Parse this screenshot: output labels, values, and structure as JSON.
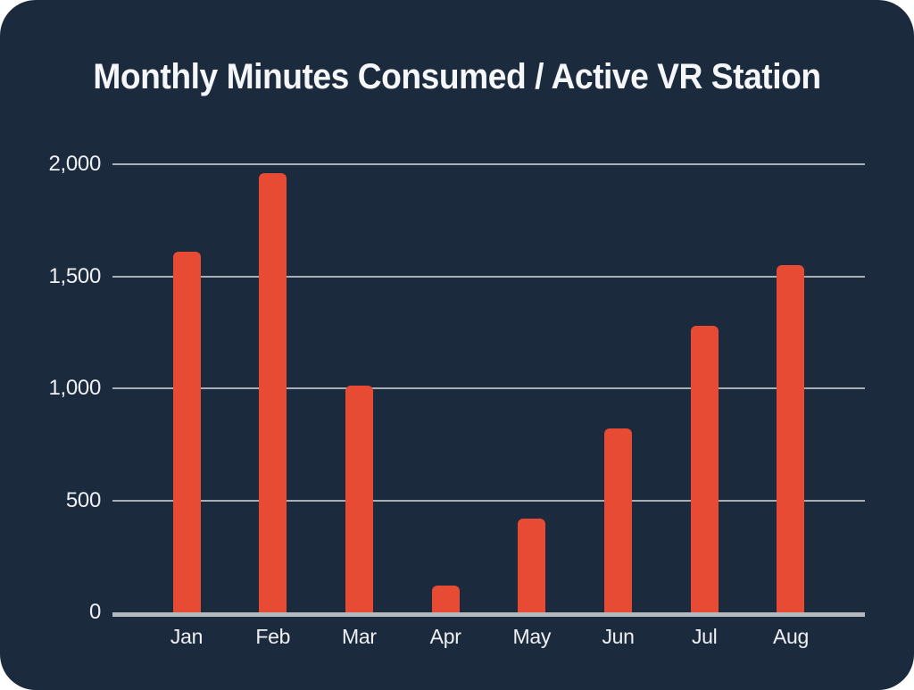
{
  "chart_data": {
    "type": "bar",
    "title": "Monthly Minutes Consumed / Active VR Station",
    "categories": [
      "Jan",
      "Feb",
      "Mar",
      "Apr",
      "May",
      "Jun",
      "Jul",
      "Aug"
    ],
    "values": [
      1610,
      1960,
      1010,
      120,
      420,
      820,
      1280,
      1550
    ],
    "xlabel": "",
    "ylabel": "",
    "ylim": [
      0,
      2000
    ],
    "yticks": [
      0,
      500,
      1000,
      1500,
      2000
    ],
    "ytick_labels": [
      "0",
      "500",
      "1,000",
      "1,500",
      "2,000"
    ],
    "grid": true,
    "legend": false,
    "colors": {
      "bar": "#e84b34",
      "card_background": "#1c2a3e",
      "page_background": "#ffffff",
      "gridline": "#a7aeb5",
      "axis_line": "#b2b8be",
      "tick_label": "#eef1f3",
      "title": "#f4f6f7"
    }
  }
}
